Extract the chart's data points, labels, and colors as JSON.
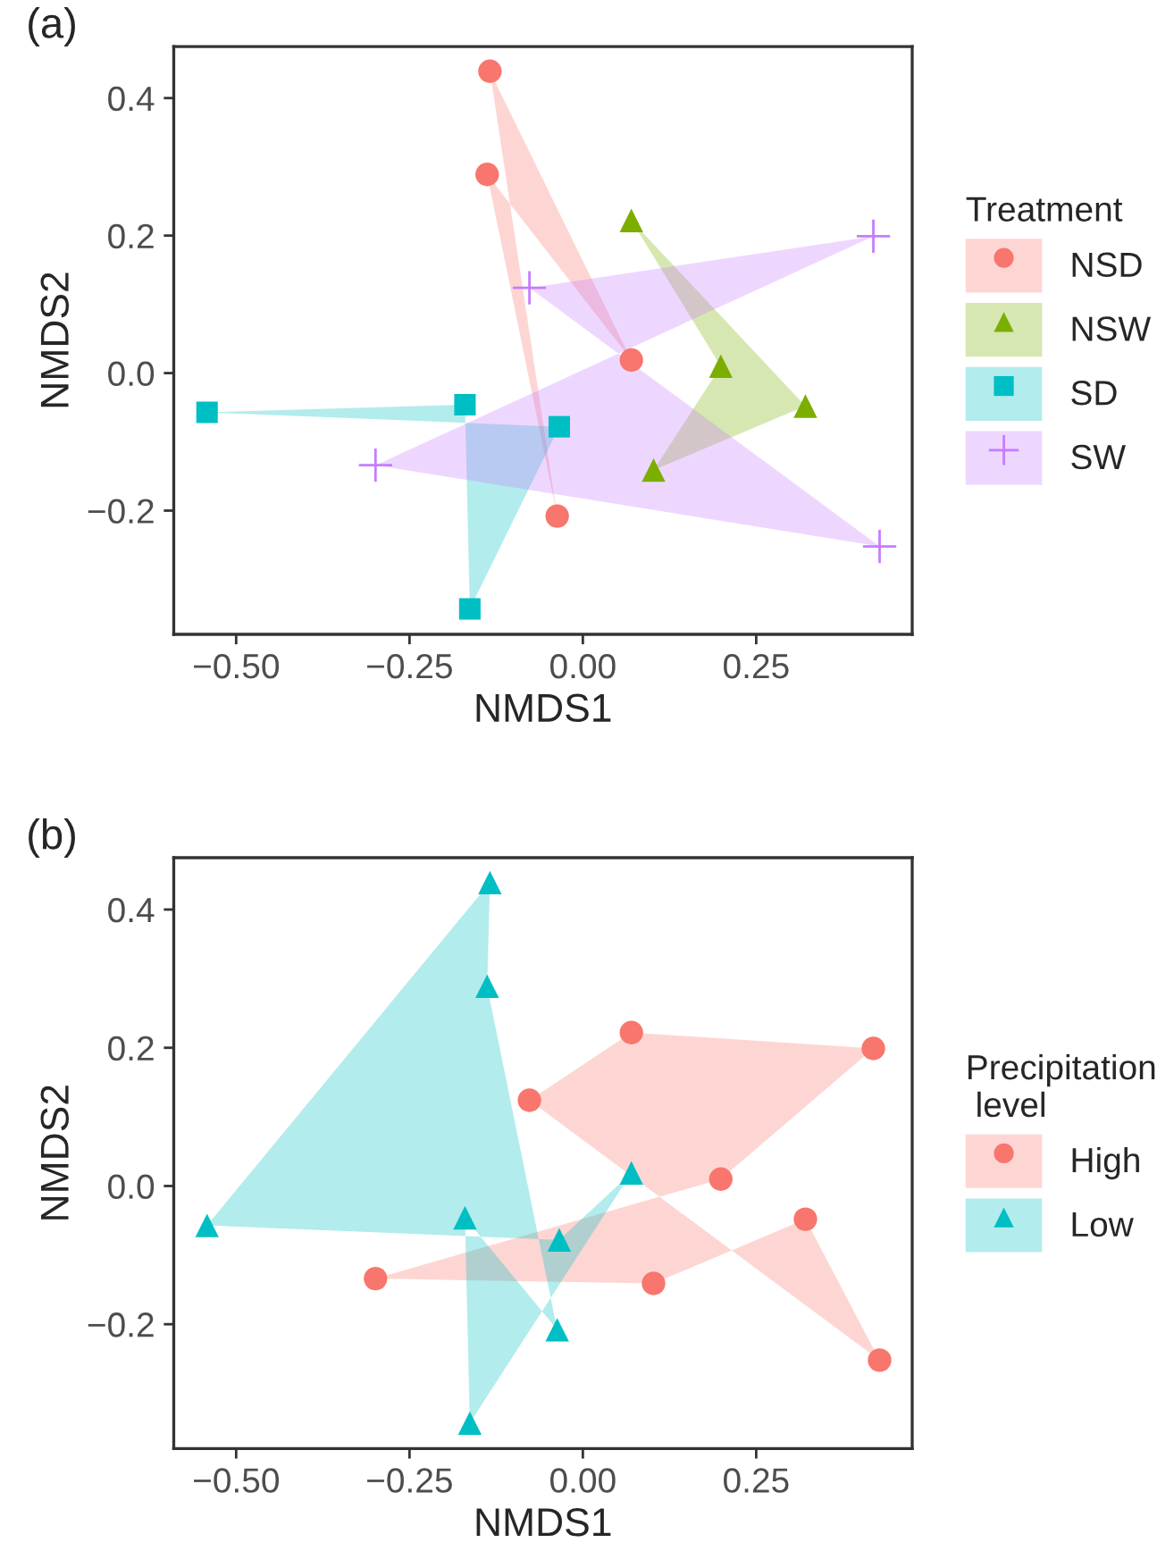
{
  "chart_data": [
    {
      "type": "scatter",
      "title": "(a)",
      "xlabel": "NMDS1",
      "ylabel": "NMDS2",
      "legend_title": "Treatment",
      "legend": "right",
      "xlim": [
        -0.59,
        0.475
      ],
      "ylim": [
        -0.38,
        0.475
      ],
      "xticks": [
        {
          "value": -0.5,
          "label": "−0.50"
        },
        {
          "value": -0.25,
          "label": "−0.25"
        },
        {
          "value": 0,
          "label": "0.00"
        },
        {
          "value": 0.25,
          "label": "0.25"
        }
      ],
      "yticks": [
        {
          "value": -0.2,
          "label": "−0.2"
        },
        {
          "value": 0,
          "label": "0.0"
        },
        {
          "value": 0.2,
          "label": "0.2"
        },
        {
          "value": 0.4,
          "label": "0.4"
        }
      ],
      "series": [
        {
          "name": "NSD",
          "color": "#f8766d",
          "marker": "circle",
          "x": [
            -0.134,
            0.07,
            -0.138,
            -0.037
          ],
          "values": [
            0.439,
            0.019,
            0.289,
            -0.208
          ]
        },
        {
          "name": "NSW",
          "color": "#7cae00",
          "marker": "triangle",
          "x": [
            0.07,
            0.321,
            0.102,
            0.199
          ],
          "values": [
            0.222,
            -0.048,
            -0.141,
            0.01
          ]
        },
        {
          "name": "SD",
          "color": "#00bfc4",
          "marker": "square",
          "x": [
            -0.542,
            -0.17,
            -0.163,
            -0.034
          ],
          "values": [
            -0.057,
            -0.046,
            -0.343,
            -0.078
          ]
        },
        {
          "name": "SW",
          "color": "#c77cff",
          "marker": "cross",
          "x": [
            -0.077,
            0.419,
            -0.299,
            0.428
          ],
          "values": [
            0.124,
            0.199,
            -0.134,
            -0.252
          ]
        }
      ]
    },
    {
      "type": "scatter",
      "title": "(b)",
      "xlabel": "NMDS1",
      "ylabel": "NMDS2",
      "legend_title": "Precipitation\n level",
      "legend": "right",
      "xlim": [
        -0.59,
        0.475
      ],
      "ylim": [
        -0.38,
        0.475
      ],
      "xticks": [
        {
          "value": -0.5,
          "label": "−0.50"
        },
        {
          "value": -0.25,
          "label": "−0.25"
        },
        {
          "value": 0,
          "label": "0.00"
        },
        {
          "value": 0.25,
          "label": "0.25"
        }
      ],
      "yticks": [
        {
          "value": -0.2,
          "label": "−0.2"
        },
        {
          "value": 0,
          "label": "0.0"
        },
        {
          "value": 0.2,
          "label": "0.2"
        },
        {
          "value": 0.4,
          "label": "0.4"
        }
      ],
      "series": [
        {
          "name": "High",
          "color": "#f8766d",
          "marker": "circle",
          "x": [
            -0.077,
            0.07,
            0.419,
            0.199,
            -0.299,
            0.102,
            0.321,
            0.428
          ],
          "values": [
            0.124,
            0.222,
            0.199,
            0.01,
            -0.134,
            -0.141,
            -0.048,
            -0.252
          ]
        },
        {
          "name": "Low",
          "color": "#00bfc4",
          "marker": "triangle",
          "x": [
            -0.542,
            -0.134,
            -0.138,
            -0.037,
            -0.17,
            -0.163,
            0.07,
            -0.034
          ],
          "values": [
            -0.057,
            0.439,
            0.289,
            -0.208,
            -0.046,
            -0.343,
            0.019,
            -0.078
          ]
        }
      ]
    }
  ]
}
